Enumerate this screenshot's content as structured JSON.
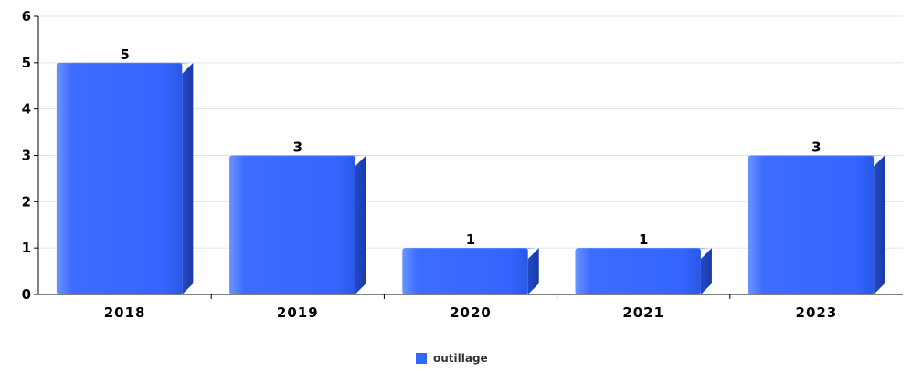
{
  "chart_data": {
    "type": "bar",
    "categories": [
      "2018",
      "2019",
      "2020",
      "2021",
      "2023"
    ],
    "series": [
      {
        "name": "outillage",
        "values": [
          5,
          3,
          1,
          1,
          3
        ],
        "color": "#3366ff"
      }
    ],
    "ylim": [
      0,
      6
    ],
    "yticks": [
      0,
      1,
      2,
      3,
      4,
      5,
      6
    ],
    "grid": true,
    "legend": "bottom-center"
  }
}
